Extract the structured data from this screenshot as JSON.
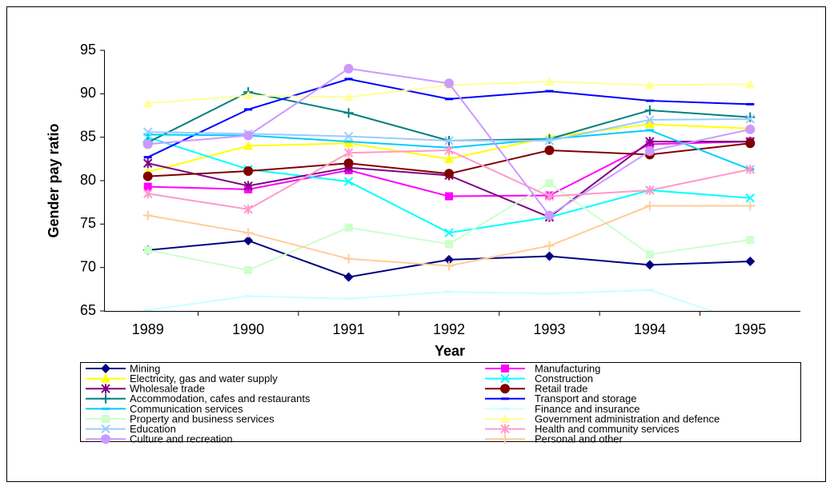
{
  "chart_data": {
    "type": "line",
    "xlabel": "Year",
    "ylabel": "Gender pay ratio",
    "categories": [
      "1989",
      "1990",
      "1991",
      "1992",
      "1993",
      "1994",
      "1995"
    ],
    "ylim": [
      65,
      95
    ],
    "yticks": [
      65,
      70,
      75,
      80,
      85,
      90,
      95
    ],
    "grid": false,
    "series": [
      {
        "name": "Mining",
        "color": "#000080",
        "marker": "diamond",
        "values": [
          72.0,
          73.1,
          68.9,
          70.9,
          71.3,
          70.3,
          70.7
        ]
      },
      {
        "name": "Manufacturing",
        "color": "#FF00FF",
        "marker": "square",
        "values": [
          79.3,
          79.0,
          81.2,
          78.2,
          78.3,
          84.2,
          84.5
        ]
      },
      {
        "name": "Electricity, gas and water supply",
        "color": "#FFFF00",
        "marker": "triangle",
        "values": [
          81.0,
          84.0,
          84.3,
          82.5,
          85.0,
          86.5,
          86.0
        ]
      },
      {
        "name": "Construction",
        "color": "#00FFFF",
        "marker": "x",
        "values": [
          85.0,
          81.3,
          79.9,
          74.0,
          75.8,
          78.9,
          78.0
        ]
      },
      {
        "name": "Wholesale trade",
        "color": "#800080",
        "marker": "asterisk",
        "values": [
          82.0,
          79.4,
          81.5,
          80.6,
          75.8,
          84.5,
          84.5
        ]
      },
      {
        "name": "Retail trade",
        "color": "#800000",
        "marker": "circle",
        "values": [
          80.5,
          81.1,
          82.0,
          80.8,
          83.5,
          83.0,
          84.3
        ]
      },
      {
        "name": "Accommodation, cafes and restaurants",
        "color": "#008080",
        "marker": "plus",
        "values": [
          84.4,
          90.2,
          87.8,
          84.6,
          84.8,
          88.1,
          87.3
        ]
      },
      {
        "name": "Transport and storage",
        "color": "#0000FF",
        "marker": "dash",
        "values": [
          82.7,
          88.2,
          91.7,
          89.4,
          90.3,
          89.2,
          88.8
        ]
      },
      {
        "name": "Communication services",
        "color": "#00CCFF",
        "marker": "dash",
        "values": [
          85.3,
          85.2,
          84.5,
          83.8,
          84.8,
          85.8,
          81.3
        ]
      },
      {
        "name": "Finance and insurance",
        "color": "#CCFFFF",
        "marker": "dash",
        "values": [
          65.1,
          66.7,
          66.4,
          67.2,
          67.0,
          67.4,
          63.5
        ]
      },
      {
        "name": "Property and business services",
        "color": "#CCFFCC",
        "marker": "square",
        "values": [
          72.0,
          69.7,
          74.6,
          72.7,
          79.7,
          71.5,
          73.2
        ]
      },
      {
        "name": "Government administration and defence",
        "color": "#FFFF99",
        "marker": "triangle",
        "values": [
          88.9,
          89.8,
          89.6,
          91.0,
          91.4,
          91.0,
          91.1
        ]
      },
      {
        "name": "Education",
        "color": "#99CCFF",
        "marker": "x",
        "values": [
          85.6,
          85.4,
          85.1,
          84.6,
          84.6,
          87.0,
          87.1
        ]
      },
      {
        "name": "Health and community services",
        "color": "#FF99CC",
        "marker": "asterisk",
        "values": [
          78.5,
          76.7,
          83.2,
          83.5,
          78.2,
          78.9,
          81.3
        ]
      },
      {
        "name": "Culture and recreation",
        "color": "#CC99FF",
        "marker": "circle",
        "values": [
          84.2,
          85.2,
          92.9,
          91.2,
          76.0,
          83.4,
          85.9
        ]
      },
      {
        "name": "Personal and other",
        "color": "#FFCC99",
        "marker": "plus",
        "values": [
          76.0,
          74.0,
          71.0,
          70.2,
          72.5,
          77.1,
          77.1
        ]
      }
    ]
  }
}
